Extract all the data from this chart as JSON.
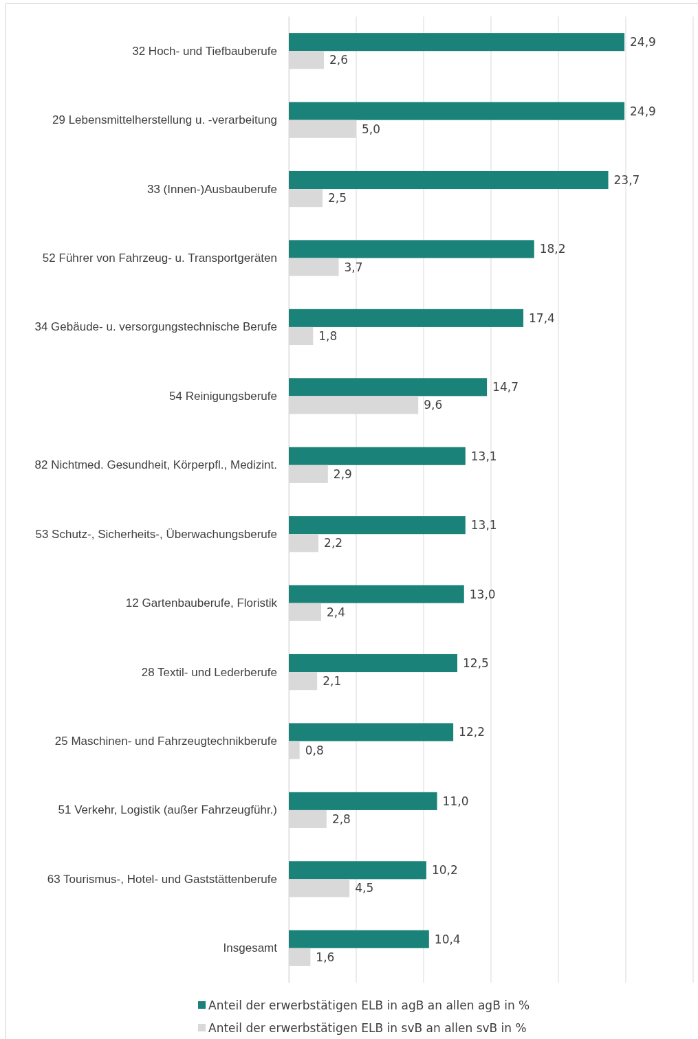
{
  "chart_data": {
    "type": "bar",
    "orientation": "horizontal",
    "categories": [
      "32 Hoch- und Tiefbauberufe",
      "29 Lebensmittelherstellung u. -verarbeitung",
      "33 (Innen-)Ausbauberufe",
      "52 Führer von Fahrzeug- u. Transportgeräten",
      "34 Gebäude- u. versorgungstechnische Berufe",
      "54 Reinigungsberufe",
      "82 Nichtmed. Gesundheit, Körperpfl., Medizint.",
      "53 Schutz-,  Sicherheits-, Überwachungsberufe",
      "12 Gartenbauberufe, Floristik",
      "28 Textil- und Lederberufe",
      "25 Maschinen- und Fahrzeugtechnikberufe",
      "51 Verkehr, Logistik (außer Fahrzeugführ.)",
      "63 Tourismus-, Hotel- und Gaststättenberufe",
      "Insgesamt"
    ],
    "series": [
      {
        "name": "Anteil der erwerbstätigen ELB in agB an allen agB in %",
        "color": "#1a8278",
        "values": [
          24.9,
          24.9,
          23.7,
          18.2,
          17.4,
          14.7,
          13.1,
          13.1,
          13.0,
          12.5,
          12.2,
          11.0,
          10.2,
          10.4
        ],
        "value_labels": [
          "24,9",
          "24,9",
          "23,7",
          "18,2",
          "17,4",
          "14,7",
          "13,1",
          "13,1",
          "13,0",
          "12,5",
          "12,2",
          "11,0",
          "10,2",
          "10,4"
        ]
      },
      {
        "name": "Anteil der erwerbstätigen ELB in svB an allen svB in %",
        "color": "#d9d9d9",
        "values": [
          2.6,
          5.0,
          2.5,
          3.7,
          1.8,
          9.6,
          2.9,
          2.2,
          2.4,
          2.1,
          0.8,
          2.8,
          4.5,
          1.6
        ],
        "value_labels": [
          "2,6",
          "5,0",
          "2,5",
          "3,7",
          "1,8",
          "9,6",
          "2,9",
          "2,2",
          "2,4",
          "2,1",
          "0,8",
          "2,8",
          "4,5",
          "1,6"
        ]
      }
    ],
    "xlim": [
      0,
      30
    ],
    "xticks": [
      {
        "value": 0,
        "label": null
      },
      {
        "value": 5,
        "label": null
      },
      {
        "value": 10,
        "label": null
      },
      {
        "value": 15,
        "label": null
      },
      {
        "value": 20,
        "label": null
      },
      {
        "value": 25,
        "label": null
      },
      {
        "value": 30,
        "label": null
      }
    ],
    "tick_labels": "y",
    "grid": "x",
    "legend": "bottom"
  }
}
